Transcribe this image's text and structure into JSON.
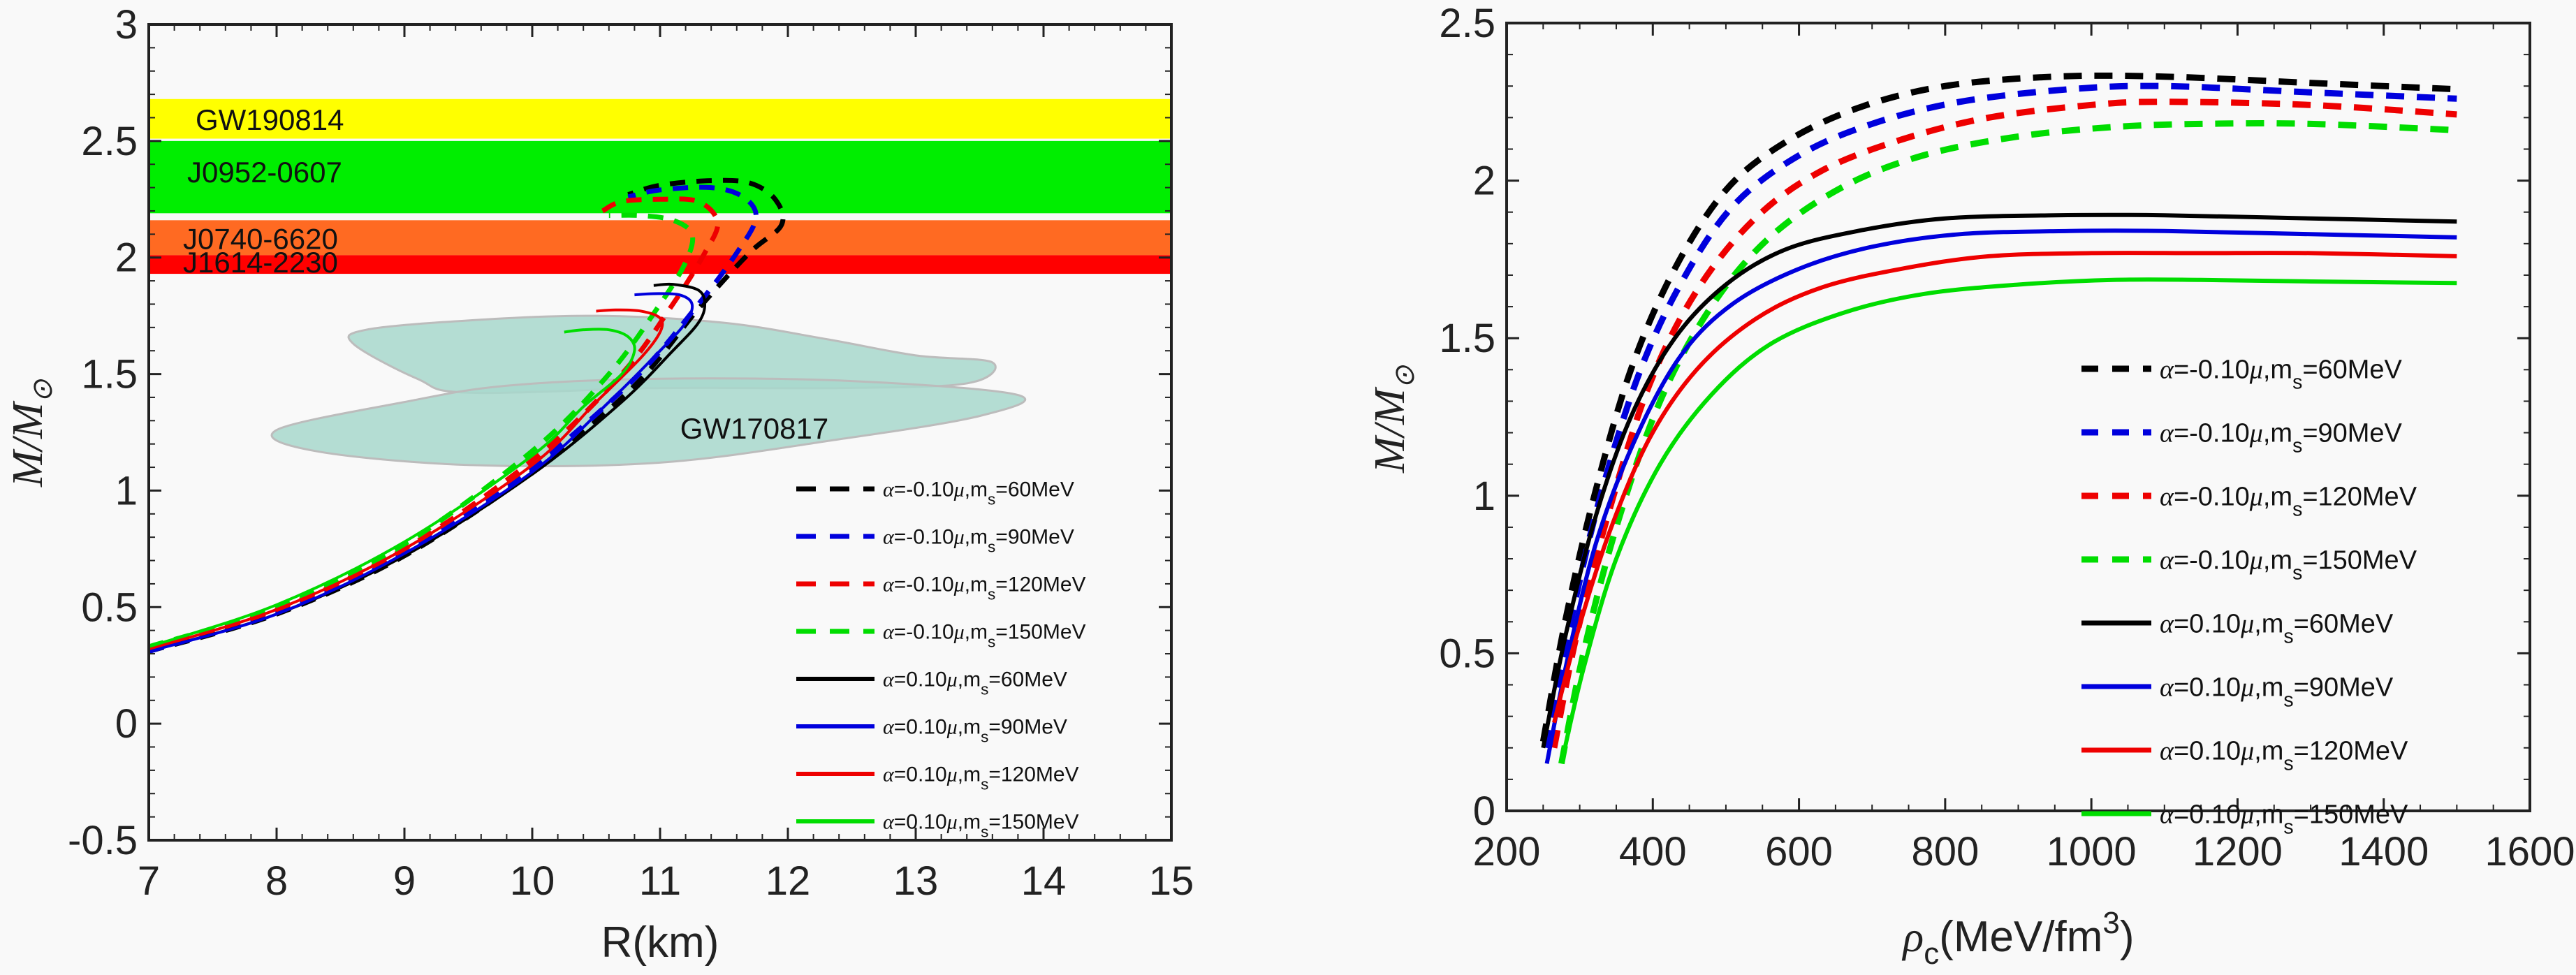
{
  "chart_data": [
    {
      "type": "line",
      "title": "",
      "xlabel": "R(km)",
      "ylabel": "M/M⊙",
      "xlim": [
        7,
        15
      ],
      "ylim": [
        -0.5,
        3
      ],
      "xticks": [
        7,
        8,
        9,
        10,
        11,
        12,
        13,
        14,
        15
      ],
      "yticks": [
        -0.5,
        0,
        0.5,
        1,
        1.5,
        2,
        2.5,
        3
      ],
      "xtick_labels": [
        "7",
        "8",
        "9",
        "10",
        "11",
        "12",
        "13",
        "14",
        "15"
      ],
      "ytick_labels": [
        "-0.5",
        "0",
        "0.5",
        "1",
        "1.5",
        "2",
        "2.5",
        "3"
      ],
      "grid": false,
      "legend_position": "bottom-right",
      "bands": [
        {
          "name": "GW190814",
          "ymin": 2.51,
          "ymax": 2.68,
          "color": "#ffff00"
        },
        {
          "name": "J0952-0607",
          "ymin": 2.19,
          "ymax": 2.5,
          "color": "#00ee00"
        },
        {
          "name": "J0740-6620",
          "ymin": 2.01,
          "ymax": 2.16,
          "color": "#ff6a22"
        },
        {
          "name": "J1614-2230",
          "ymin": 1.93,
          "ymax": 2.01,
          "color": "#ff0000"
        }
      ],
      "regions": [
        {
          "name": "GW170817",
          "color": "#a8d8cc",
          "upper": [
            [
              8.7,
              1.69
            ],
            [
              9.5,
              1.73
            ],
            [
              10.5,
              1.75
            ],
            [
              11.5,
              1.72
            ],
            [
              12.3,
              1.65
            ],
            [
              13.0,
              1.58
            ],
            [
              13.6,
              1.55
            ],
            [
              13.4,
              1.46
            ],
            [
              12.4,
              1.44
            ],
            [
              11.0,
              1.44
            ],
            [
              9.5,
              1.42
            ],
            [
              9.1,
              1.48
            ],
            [
              8.6,
              1.63
            ]
          ],
          "lower": [
            [
              8.0,
              1.26
            ],
            [
              9.0,
              1.38
            ],
            [
              9.8,
              1.45
            ],
            [
              11.0,
              1.48
            ],
            [
              12.5,
              1.47
            ],
            [
              13.8,
              1.41
            ],
            [
              13.5,
              1.32
            ],
            [
              12.4,
              1.22
            ],
            [
              11.0,
              1.12
            ],
            [
              9.5,
              1.11
            ],
            [
              8.3,
              1.17
            ]
          ]
        }
      ],
      "series": [
        {
          "name": "α=-0.10μ,m_s=60MeV",
          "color": "#000000",
          "dashed": true,
          "x": [
            7.0,
            8.0,
            9.0,
            10.0,
            10.8,
            11.3,
            11.7,
            11.95,
            11.9,
            11.7,
            11.4,
            11.0,
            10.75
          ],
          "y": [
            0.31,
            0.47,
            0.72,
            1.08,
            1.45,
            1.78,
            2.02,
            2.14,
            2.25,
            2.32,
            2.33,
            2.31,
            2.27
          ]
        },
        {
          "name": "α=-0.10μ,m_s=90MeV",
          "color": "#0000dd",
          "dashed": true,
          "x": [
            7.0,
            8.0,
            9.0,
            10.0,
            10.8,
            11.3,
            11.6,
            11.75,
            11.65,
            11.4,
            11.0,
            10.75
          ],
          "y": [
            0.31,
            0.48,
            0.73,
            1.1,
            1.48,
            1.8,
            2.02,
            2.17,
            2.26,
            2.3,
            2.29,
            2.26
          ]
        },
        {
          "name": "α=-0.10μ,m_s=120MeV",
          "color": "#ee0000",
          "dashed": true,
          "x": [
            7.0,
            8.0,
            9.0,
            10.0,
            10.7,
            11.1,
            11.35,
            11.45,
            11.3,
            11.0,
            10.7,
            10.55
          ],
          "y": [
            0.32,
            0.49,
            0.75,
            1.13,
            1.5,
            1.8,
            2.02,
            2.15,
            2.24,
            2.25,
            2.24,
            2.2
          ]
        },
        {
          "name": "α=-0.10μ,m_s=150MeV",
          "color": "#00dd00",
          "dashed": true,
          "x": [
            7.0,
            8.0,
            9.0,
            10.0,
            10.6,
            11.0,
            11.2,
            11.25,
            11.1,
            10.85,
            10.6
          ],
          "y": [
            0.33,
            0.5,
            0.77,
            1.17,
            1.5,
            1.8,
            1.98,
            2.1,
            2.16,
            2.18,
            2.18
          ]
        },
        {
          "name": "α=0.10μ,m_s=60MeV",
          "color": "#000000",
          "dashed": false,
          "x": [
            7.0,
            8.0,
            9.0,
            10.0,
            10.7,
            11.1,
            11.3,
            11.35,
            11.3,
            11.1,
            10.95
          ],
          "y": [
            0.31,
            0.47,
            0.72,
            1.07,
            1.38,
            1.6,
            1.72,
            1.8,
            1.86,
            1.885,
            1.88
          ]
        },
        {
          "name": "α=0.10μ,m_s=90MeV",
          "color": "#0000dd",
          "dashed": false,
          "x": [
            7.0,
            8.0,
            9.0,
            10.0,
            10.6,
            11.0,
            11.2,
            11.25,
            11.15,
            10.95,
            10.8
          ],
          "y": [
            0.31,
            0.47,
            0.73,
            1.08,
            1.38,
            1.6,
            1.72,
            1.8,
            1.84,
            1.845,
            1.84
          ]
        },
        {
          "name": "α=0.10μ,m_s=120MeV",
          "color": "#ee0000",
          "dashed": false,
          "x": [
            7.0,
            8.0,
            9.0,
            10.0,
            10.5,
            10.85,
            11.0,
            11.0,
            10.85,
            10.65,
            10.5
          ],
          "y": [
            0.32,
            0.49,
            0.75,
            1.11,
            1.38,
            1.57,
            1.68,
            1.74,
            1.77,
            1.775,
            1.77
          ]
        },
        {
          "name": "α=0.10μ,m_s=150MeV",
          "color": "#00dd00",
          "dashed": false,
          "x": [
            7.0,
            8.0,
            9.0,
            10.0,
            10.4,
            10.7,
            10.8,
            10.75,
            10.6,
            10.4,
            10.25
          ],
          "y": [
            0.33,
            0.51,
            0.78,
            1.15,
            1.36,
            1.5,
            1.6,
            1.66,
            1.69,
            1.69,
            1.68
          ]
        }
      ],
      "legend": [
        {
          "alpha": "-0.10",
          "ms": "60MeV"
        },
        {
          "alpha": "-0.10",
          "ms": "90MeV"
        },
        {
          "alpha": "-0.10",
          "ms": "120MeV"
        },
        {
          "alpha": "-0.10",
          "ms": "150MeV"
        },
        {
          "alpha": "0.10",
          "ms": "60MeV"
        },
        {
          "alpha": "0.10",
          "ms": "90MeV"
        },
        {
          "alpha": "0.10",
          "ms": "120MeV"
        },
        {
          "alpha": "0.10",
          "ms": "150MeV"
        }
      ]
    },
    {
      "type": "line",
      "title": "",
      "xlabel": "ρc(MeV/fm³)",
      "ylabel": "M/M⊙",
      "xlim": [
        200,
        1600
      ],
      "ylim": [
        0,
        2.5
      ],
      "xticks": [
        200,
        400,
        600,
        800,
        1000,
        1200,
        1400,
        1600
      ],
      "yticks": [
        0,
        0.5,
        1,
        1.5,
        2,
        2.5
      ],
      "xtick_labels": [
        "200",
        "400",
        "600",
        "800",
        "1000",
        "1200",
        "1400",
        "1600"
      ],
      "ytick_labels": [
        "0",
        "0.5",
        "1",
        "1.5",
        "2",
        "2.5"
      ],
      "grid": false,
      "legend_position": "right",
      "series": [
        {
          "name": "α=-0.10μ,m_s=60MeV",
          "color": "#000000",
          "dashed": true,
          "x": [
            250,
            280,
            320,
            370,
            430,
            500,
            580,
            680,
            800,
            950,
            1100,
            1300,
            1500
          ],
          "y": [
            0.22,
            0.6,
            1.0,
            1.4,
            1.72,
            1.97,
            2.12,
            2.23,
            2.3,
            2.33,
            2.33,
            2.31,
            2.29
          ]
        },
        {
          "name": "α=-0.10μ,m_s=90MeV",
          "color": "#0000dd",
          "dashed": true,
          "x": [
            255,
            285,
            325,
            380,
            440,
            510,
            600,
            700,
            820,
            970,
            1100,
            1300,
            1500
          ],
          "y": [
            0.2,
            0.57,
            0.97,
            1.38,
            1.68,
            1.92,
            2.08,
            2.18,
            2.25,
            2.29,
            2.3,
            2.28,
            2.26
          ]
        },
        {
          "name": "α=-0.10μ,m_s=120MeV",
          "color": "#ee0000",
          "dashed": true,
          "x": [
            265,
            295,
            340,
            395,
            460,
            540,
            630,
            740,
            860,
            1000,
            1100,
            1300,
            1500
          ],
          "y": [
            0.2,
            0.55,
            0.95,
            1.35,
            1.65,
            1.88,
            2.03,
            2.13,
            2.2,
            2.24,
            2.25,
            2.24,
            2.21
          ]
        },
        {
          "name": "α=-0.10μ,m_s=150MeV",
          "color": "#00dd00",
          "dashed": true,
          "x": [
            275,
            305,
            350,
            410,
            480,
            560,
            660,
            770,
            900,
            1030,
            1150,
            1300,
            1500
          ],
          "y": [
            0.15,
            0.5,
            0.9,
            1.3,
            1.6,
            1.82,
            1.98,
            2.08,
            2.14,
            2.17,
            2.18,
            2.18,
            2.16
          ]
        },
        {
          "name": "α=0.10μ,m_s=60MeV",
          "color": "#000000",
          "dashed": false,
          "x": [
            250,
            280,
            320,
            370,
            430,
            500,
            580,
            680,
            800,
            950,
            1100,
            1300,
            1500
          ],
          "y": [
            0.2,
            0.55,
            0.92,
            1.25,
            1.5,
            1.67,
            1.78,
            1.84,
            1.88,
            1.89,
            1.89,
            1.88,
            1.87
          ]
        },
        {
          "name": "α=0.10μ,m_s=90MeV",
          "color": "#0000dd",
          "dashed": false,
          "x": [
            255,
            285,
            325,
            380,
            440,
            510,
            600,
            700,
            820,
            970,
            1100,
            1300,
            1500
          ],
          "y": [
            0.15,
            0.5,
            0.87,
            1.2,
            1.45,
            1.61,
            1.72,
            1.79,
            1.83,
            1.84,
            1.84,
            1.83,
            1.82
          ]
        },
        {
          "name": "α=0.10μ,m_s=120MeV",
          "color": "#ee0000",
          "dashed": false,
          "x": [
            265,
            295,
            340,
            395,
            460,
            540,
            630,
            740,
            860,
            1000,
            1150,
            1300,
            1500
          ],
          "y": [
            0.28,
            0.55,
            0.88,
            1.18,
            1.4,
            1.56,
            1.66,
            1.72,
            1.76,
            1.77,
            1.77,
            1.77,
            1.76
          ]
        },
        {
          "name": "α=0.10μ,m_s=150MeV",
          "color": "#00dd00",
          "dashed": false,
          "x": [
            275,
            305,
            350,
            410,
            480,
            560,
            660,
            770,
            900,
            1030,
            1150,
            1300,
            1500
          ],
          "y": [
            0.15,
            0.45,
            0.8,
            1.1,
            1.32,
            1.48,
            1.58,
            1.64,
            1.67,
            1.685,
            1.685,
            1.68,
            1.675
          ]
        }
      ],
      "legend": [
        {
          "alpha": "-0.10",
          "ms": "60MeV"
        },
        {
          "alpha": "-0.10",
          "ms": "90MeV"
        },
        {
          "alpha": "-0.10",
          "ms": "120MeV"
        },
        {
          "alpha": "-0.10",
          "ms": "150MeV"
        },
        {
          "alpha": "0.10",
          "ms": "60MeV"
        },
        {
          "alpha": "0.10",
          "ms": "90MeV"
        },
        {
          "alpha": "0.10",
          "ms": "120MeV"
        },
        {
          "alpha": "0.10",
          "ms": "150MeV"
        }
      ]
    }
  ],
  "labels": {
    "left_xlabel": "R(km)",
    "left_ylabel_M": "M",
    "left_ylabel_Msun": "M",
    "right_xlabel_rho": "ρ",
    "right_xlabel_sub": "c",
    "right_xlabel_unit": "(MeV/fm",
    "right_xlabel_sup": "3",
    "right_xlabel_close": ")",
    "gw170817": "GW170817",
    "legend_alpha": "α",
    "legend_mu": "μ",
    "legend_m": ",m",
    "legend_s": "s"
  }
}
